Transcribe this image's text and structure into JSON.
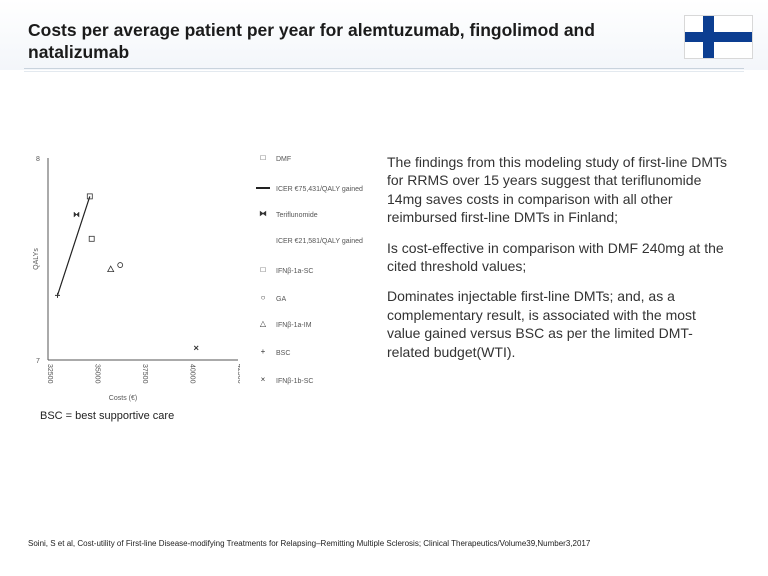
{
  "header": {
    "title": "Costs per average patient per year for alemtuzumab, fingolimod and natalizumab"
  },
  "chart_data": {
    "type": "scatter",
    "xlabel": "Costs (€)",
    "ylabel": "QALYs",
    "xlim": [
      32500,
      42500
    ],
    "ylim": [
      7,
      8
    ],
    "xticks": [
      "32500",
      "35000",
      "37500",
      "40000",
      "42500"
    ],
    "yticks": [
      "8",
      "7"
    ],
    "series": [
      {
        "name": "DMF",
        "marker": "square",
        "points": [
          {
            "x": 34800,
            "y": 7.6
          }
        ]
      },
      {
        "name": "ICER €75,431/QALY gained",
        "marker": "line",
        "points": [
          {
            "x": 33000,
            "y": 7.32
          },
          {
            "x": 34700,
            "y": 7.81
          }
        ]
      },
      {
        "name": "Teriflunomide",
        "marker": "bowtie",
        "points": [
          {
            "x": 34000,
            "y": 7.72
          }
        ]
      },
      {
        "name": "ICER €21,581/QALY gained",
        "marker": "none",
        "points": []
      },
      {
        "name": "IFNβ-1a-SC",
        "marker": "square",
        "points": [
          {
            "x": 34700,
            "y": 7.81
          }
        ]
      },
      {
        "name": "GA",
        "marker": "circle",
        "points": [
          {
            "x": 36300,
            "y": 7.47
          }
        ]
      },
      {
        "name": "IFNβ-1a-IM",
        "marker": "triangle",
        "points": [
          {
            "x": 35800,
            "y": 7.45
          }
        ]
      },
      {
        "name": "BSC",
        "marker": "plus",
        "points": [
          {
            "x": 33000,
            "y": 7.32
          }
        ]
      },
      {
        "name": "IFNβ-1b-SC",
        "marker": "cross",
        "points": [
          {
            "x": 40300,
            "y": 7.06
          }
        ]
      }
    ],
    "legend_position": "right"
  },
  "bullets": [
    "The findings from this modeling study of first-line DMTs for RRMS over 15 years suggest that teriflunomide 14mg saves costs in comparison with all other reimbursed first-line DMTs in Finland;",
    "Is cost-effective in comparison with DMF 240mg at the cited threshold values;",
    "Dominates injectable first-line DMTs; and, as a complementary result, is associated with the most value gained versus BSC as per the limited DMT-related budget(WTI)."
  ],
  "footnote": "BSC = best supportive care",
  "citation": "Soini, S et al, Cost-utility of First-line Disease-modifying Treatments for Relapsing–Remitting Multiple Sclerosis; Clinical Therapeutics/Volume39,Number3,2017",
  "colors": {
    "flag_blue": "#0c3e91",
    "text": "#333333"
  }
}
